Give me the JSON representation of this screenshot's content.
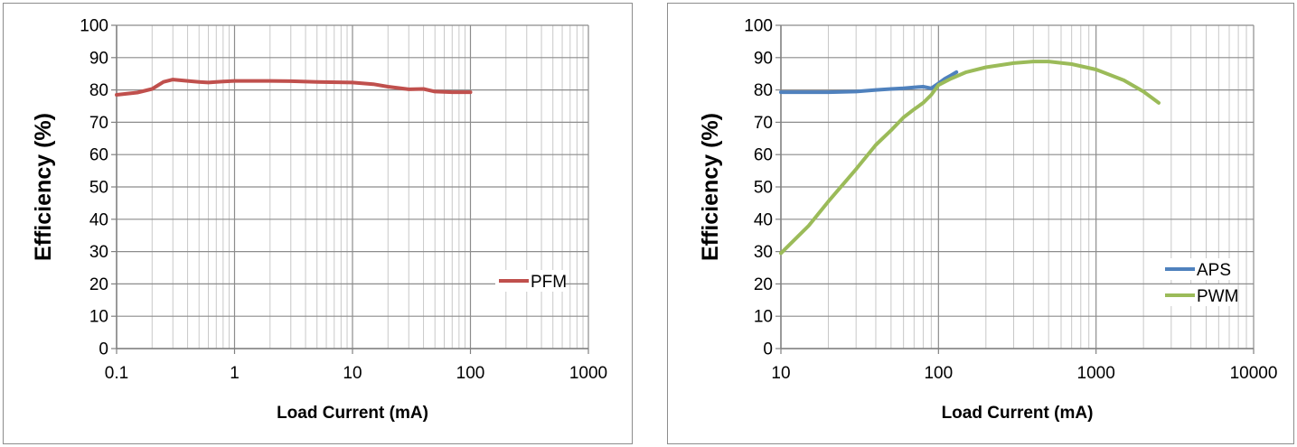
{
  "chart_data": [
    {
      "type": "line",
      "xscale": "log",
      "xlim": [
        0.1,
        1000
      ],
      "ylim": [
        0,
        100
      ],
      "xlabel": "Load Current (mA)",
      "ylabel": "Efficiency (%)",
      "x_tick_labels": [
        "0.1",
        "1",
        "10",
        "100",
        "1000"
      ],
      "y_tick_labels": [
        "0",
        "10",
        "20",
        "30",
        "40",
        "50",
        "60",
        "70",
        "80",
        "90",
        "100"
      ],
      "grid": true,
      "legend_position": "right",
      "series": [
        {
          "name": "PFM",
          "color": "#c0504d",
          "x": [
            0.1,
            0.15,
            0.2,
            0.25,
            0.3,
            0.4,
            0.5,
            0.6,
            0.7,
            0.8,
            1,
            2,
            3,
            5,
            10,
            15,
            20,
            30,
            40,
            50,
            70,
            100
          ],
          "y": [
            78.5,
            79.2,
            80.3,
            82.5,
            83.2,
            82.8,
            82.5,
            82.3,
            82.5,
            82.6,
            82.8,
            82.8,
            82.7,
            82.5,
            82.3,
            81.8,
            81.0,
            80.2,
            80.3,
            79.5,
            79.3,
            79.3
          ]
        }
      ]
    },
    {
      "type": "line",
      "xscale": "log",
      "xlim": [
        10,
        10000
      ],
      "ylim": [
        0,
        100
      ],
      "xlabel": "Load Current (mA)",
      "ylabel": "Efficiency (%)",
      "x_tick_labels": [
        "10",
        "100",
        "1000",
        "10000"
      ],
      "y_tick_labels": [
        "0",
        "10",
        "20",
        "30",
        "40",
        "50",
        "60",
        "70",
        "80",
        "90",
        "100"
      ],
      "grid": true,
      "legend_position": "right",
      "series": [
        {
          "name": "APS",
          "color": "#4f81bd",
          "x": [
            10,
            20,
            30,
            40,
            50,
            60,
            70,
            80,
            90,
            100,
            110,
            120,
            130
          ],
          "y": [
            79.3,
            79.3,
            79.5,
            80.0,
            80.3,
            80.5,
            80.8,
            81.0,
            80.5,
            82.0,
            83.5,
            84.5,
            85.5
          ]
        },
        {
          "name": "PWM",
          "color": "#9bbb59",
          "x": [
            10,
            15,
            20,
            30,
            40,
            50,
            60,
            70,
            80,
            90,
            100,
            120,
            150,
            200,
            300,
            400,
            500,
            700,
            1000,
            1500,
            2000,
            2500
          ],
          "y": [
            29.5,
            38,
            45.5,
            55.5,
            63,
            67.5,
            71.5,
            74,
            76,
            78.5,
            81.5,
            83.5,
            85.5,
            87.0,
            88.3,
            88.8,
            88.8,
            88.0,
            86.3,
            83.0,
            79.5,
            76.0
          ]
        }
      ]
    }
  ]
}
